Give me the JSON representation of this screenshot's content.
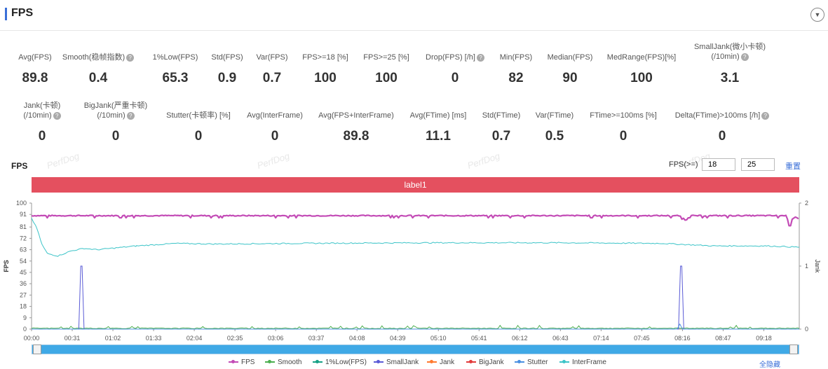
{
  "header": {
    "title": "FPS"
  },
  "metrics_row1": [
    {
      "label": "Avg(FPS)",
      "value": "89.8",
      "help": false
    },
    {
      "label": "Smooth(稳帧指数)",
      "value": "0.4",
      "help": true
    },
    {
      "label": "1%Low(FPS)",
      "value": "65.3",
      "help": false
    },
    {
      "label": "Std(FPS)",
      "value": "0.9",
      "help": false
    },
    {
      "label": "Var(FPS)",
      "value": "0.7",
      "help": false
    },
    {
      "label": "FPS>=18 [%]",
      "value": "100",
      "help": false
    },
    {
      "label": "FPS>=25 [%]",
      "value": "100",
      "help": false
    },
    {
      "label": "Drop(FPS) [/h]",
      "value": "0",
      "help": true
    },
    {
      "label": "Min(FPS)",
      "value": "82",
      "help": false
    },
    {
      "label": "Median(FPS)",
      "value": "90",
      "help": false
    },
    {
      "label": "MedRange(FPS)[%]",
      "value": "100",
      "help": false
    },
    {
      "label": "SmallJank(微小卡顿)",
      "label2": "(/10min)",
      "value": "3.1",
      "help": true
    }
  ],
  "metrics_row2": [
    {
      "label": "Jank(卡顿)",
      "label2": "(/10min)",
      "value": "0",
      "help": true
    },
    {
      "label": "BigJank(严重卡顿)",
      "label2": "(/10min)",
      "value": "0",
      "help": true
    },
    {
      "label": "Stutter(卡顿率) [%]",
      "value": "0",
      "help": false
    },
    {
      "label": "Avg(InterFrame)",
      "value": "0",
      "help": false
    },
    {
      "label": "Avg(FPS+InterFrame)",
      "value": "89.8",
      "help": false
    },
    {
      "label": "Avg(FTime) [ms]",
      "value": "11.1",
      "help": false
    },
    {
      "label": "Std(FTime)",
      "value": "0.7",
      "help": false
    },
    {
      "label": "Var(FTime)",
      "value": "0.5",
      "help": false
    },
    {
      "label": "FTime>=100ms [%]",
      "value": "0",
      "help": false
    },
    {
      "label": "Delta(FTime)>100ms [/h]",
      "value": "0",
      "help": true
    }
  ],
  "controls": {
    "section_label": "FPS",
    "fps_ge_label": "FPS(>=)",
    "threshold1": "18",
    "threshold2": "25",
    "reset_label": "重置",
    "band_label": "label1",
    "hide_all": "全隐藏",
    "watermark": "PerfDog"
  },
  "colors": {
    "fps": "#c34bb6",
    "smooth": "#4caf50",
    "low1": "#16a085",
    "smalljank": "#5a5bd6",
    "jank": "#ff7a2f",
    "bigjank": "#e23b3b",
    "stutter": "#4a90e2",
    "interframe": "#3cc4c8"
  },
  "chart_data": {
    "type": "line",
    "xlabel": "",
    "ylabel": "FPS",
    "y2label": "Jank",
    "ylim": [
      0,
      100
    ],
    "y2lim": [
      0,
      2
    ],
    "yticks": [
      0,
      9,
      18,
      27,
      36,
      45,
      54,
      63,
      72,
      81,
      91,
      100
    ],
    "y2ticks": [
      0,
      1,
      2
    ],
    "x_tick_labels": [
      "00:00",
      "00:31",
      "01:02",
      "01:33",
      "02:04",
      "02:35",
      "03:06",
      "03:37",
      "04:08",
      "04:39",
      "05:10",
      "05:41",
      "06:12",
      "06:43",
      "07:14",
      "07:45",
      "08:16",
      "08:47",
      "09:18"
    ],
    "duration_s": 585,
    "series": [
      {
        "name": "FPS",
        "axis": "left",
        "description_points_s": [
          0,
          585
        ],
        "typical": 90,
        "min": 82
      },
      {
        "name": "Smooth",
        "axis": "left",
        "typical": 0.5
      },
      {
        "name": "1%Low(FPS)",
        "axis": "left"
      },
      {
        "name": "SmallJank",
        "axis": "right",
        "spikes": [
          {
            "t": 38,
            "value": 1
          },
          {
            "t": 495,
            "value": 1
          }
        ]
      },
      {
        "name": "Jank",
        "axis": "right"
      },
      {
        "name": "BigJank",
        "axis": "right"
      },
      {
        "name": "Stutter",
        "axis": "right"
      },
      {
        "name": "InterFrame",
        "axis": "left",
        "points": [
          [
            0,
            88
          ],
          [
            4,
            80
          ],
          [
            8,
            67
          ],
          [
            12,
            60
          ],
          [
            20,
            58
          ],
          [
            30,
            62
          ],
          [
            40,
            64
          ],
          [
            50,
            63
          ],
          [
            60,
            64
          ],
          [
            80,
            66
          ],
          [
            110,
            68
          ],
          [
            140,
            67.5
          ],
          [
            200,
            68
          ],
          [
            300,
            68.5
          ],
          [
            400,
            68.5
          ],
          [
            480,
            68
          ],
          [
            520,
            66
          ],
          [
            560,
            66
          ],
          [
            585,
            65
          ]
        ]
      }
    ],
    "legend": [
      "FPS",
      "Smooth",
      "1%Low(FPS)",
      "SmallJank",
      "Jank",
      "BigJank",
      "Stutter",
      "InterFrame"
    ],
    "legend_position": "bottom"
  }
}
